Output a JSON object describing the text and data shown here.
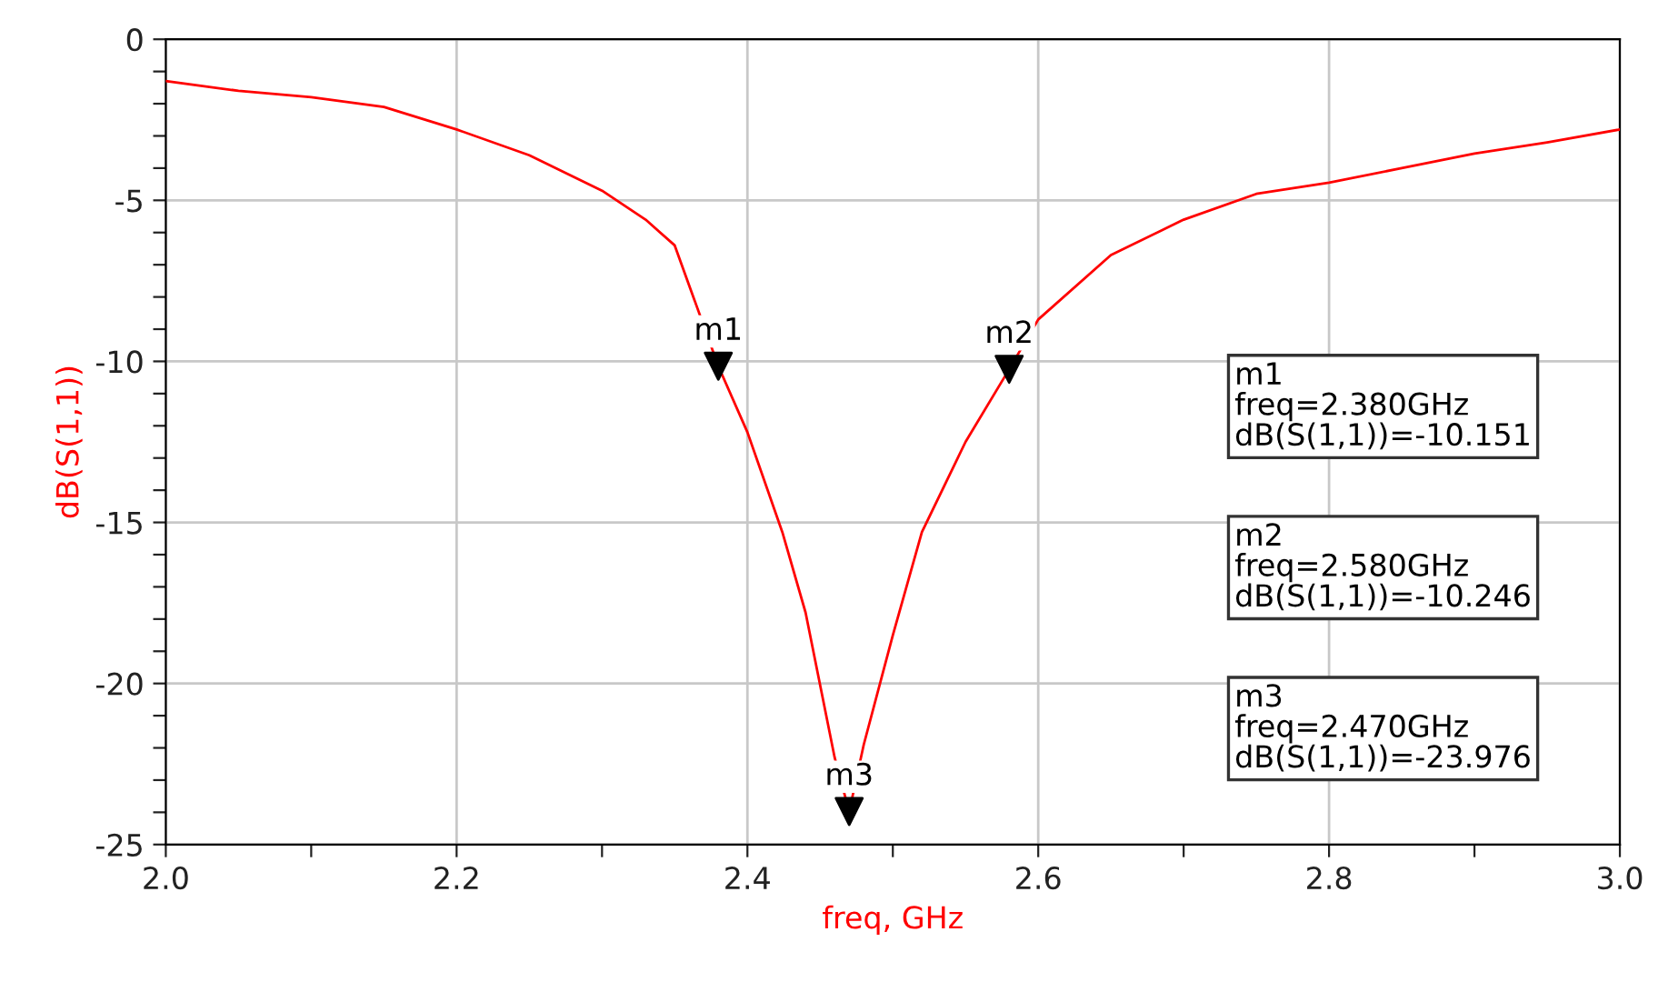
{
  "chart_data": {
    "type": "line",
    "xlabel": "freq, GHz",
    "ylabel": "dB(S(1,1))",
    "x": [
      2.0,
      2.05,
      2.1,
      2.15,
      2.2,
      2.25,
      2.3,
      2.33,
      2.35,
      2.38,
      2.4,
      2.424,
      2.44,
      2.46,
      2.47,
      2.48,
      2.5,
      2.52,
      2.55,
      2.58,
      2.6,
      2.65,
      2.7,
      2.75,
      2.8,
      2.85,
      2.9,
      2.95,
      3.0
    ],
    "series": [
      {
        "color": "#ff0000",
        "values": [
          -1.3,
          -1.6,
          -1.8,
          -2.1,
          -2.8,
          -3.6,
          -4.7,
          -5.6,
          -6.4,
          -10.151,
          -12.2,
          -15.3,
          -17.8,
          -22.3,
          -23.976,
          -21.9,
          -18.5,
          -15.3,
          -12.5,
          -10.246,
          -8.7,
          -6.7,
          -5.6,
          -4.8,
          -4.45,
          -4.0,
          -3.55,
          -3.2,
          -2.8
        ]
      },
      {
        "type": "scatter",
        "color": "#000000",
        "marker": "triangle",
        "x": [
          2.38,
          2.58,
          2.47
        ],
        "values": [
          -10.151,
          -10.246,
          -23.976
        ]
      }
    ],
    "xlim": [
      2.0,
      3.0
    ],
    "ylim": [
      -25,
      0
    ],
    "xticks": [
      {
        "value": 2.0,
        "label": "2.0"
      },
      {
        "value": 2.1,
        "label": null
      },
      {
        "value": 2.2,
        "label": "2.2"
      },
      {
        "value": 2.3,
        "label": null
      },
      {
        "value": 2.4,
        "label": "2.4"
      },
      {
        "value": 2.5,
        "label": null
      },
      {
        "value": 2.6,
        "label": "2.6"
      },
      {
        "value": 2.7,
        "label": null
      },
      {
        "value": 2.8,
        "label": "2.8"
      },
      {
        "value": 2.9,
        "label": null
      },
      {
        "value": 3.0,
        "label": "3.0"
      }
    ],
    "yticks": [
      -25,
      {
        "value": -24,
        "label": null
      },
      {
        "value": -23,
        "label": null
      },
      {
        "value": -22,
        "label": null
      },
      {
        "value": -21,
        "label": null
      },
      -20,
      {
        "value": -19,
        "label": null
      },
      {
        "value": -18,
        "label": null
      },
      {
        "value": -17,
        "label": null
      },
      {
        "value": -16,
        "label": null
      },
      -15,
      {
        "value": -14,
        "label": null
      },
      {
        "value": -13,
        "label": null
      },
      {
        "value": -12,
        "label": null
      },
      {
        "value": -11,
        "label": null
      },
      -10,
      {
        "value": -9,
        "label": null
      },
      {
        "value": -8,
        "label": null
      },
      {
        "value": -7,
        "label": null
      },
      {
        "value": -6,
        "label": null
      },
      -5,
      {
        "value": -4,
        "label": null
      },
      {
        "value": -3,
        "label": null
      },
      {
        "value": -2,
        "label": null
      },
      {
        "value": -1,
        "label": null
      },
      0
    ],
    "grid": true,
    "legend": false,
    "annotations": [
      {
        "text": "m1",
        "x": 2.38,
        "y": -10.151
      },
      {
        "text": "m2",
        "x": 2.58,
        "y": -10.246
      },
      {
        "text": "m3",
        "x": 2.47,
        "y": -23.976
      },
      "m1\nfreq=2.380GHz\ndB(S(1,1))=-10.151",
      "m2\nfreq=2.580GHz\ndB(S(1,1))=-10.246",
      "m3\nfreq=2.470GHz\ndB(S(1,1))=-23.976"
    ]
  }
}
